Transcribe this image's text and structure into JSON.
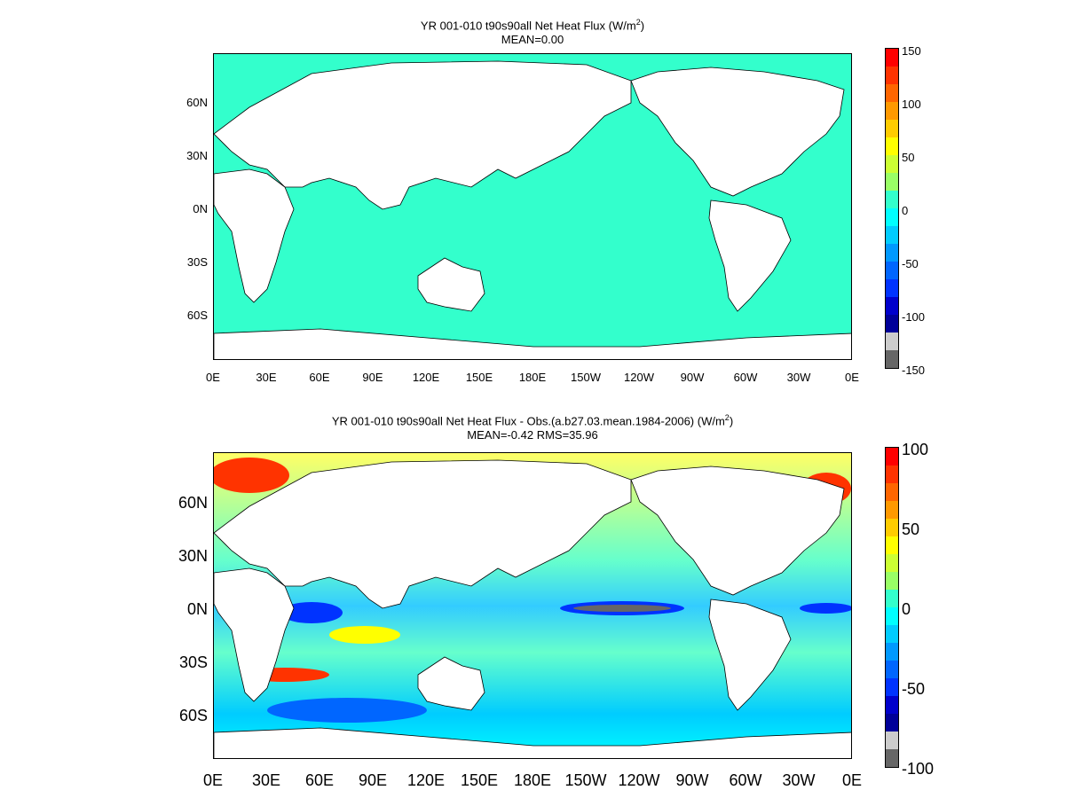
{
  "panels": [
    {
      "title_main": "YR 001-010 t90s90all  Net Heat Flux (W/m",
      "title_unit_exp": "2",
      "title_close": ")",
      "subtitle": "MEAN=0.00",
      "colorbar_labels": [
        "150",
        "100",
        "50",
        "0",
        "-50",
        "-100",
        "-150"
      ],
      "field_color": "#33ffcc"
    },
    {
      "title_main": "YR 001-010 t90s90all  Net Heat Flux - Obs.(a.b27.03.mean.1984-2006) (W/m",
      "title_unit_exp": "2",
      "title_close": ")",
      "subtitle": "MEAN=-0.42 RMS=35.96",
      "colorbar_labels": [
        "100",
        "50",
        "0",
        "-50",
        "-100"
      ]
    }
  ],
  "lat_labels": [
    "60N",
    "30N",
    "0N",
    "30S",
    "60S"
  ],
  "lon_labels": [
    "0E",
    "30E",
    "60E",
    "90E",
    "120E",
    "150E",
    "180E",
    "150W",
    "120W",
    "90W",
    "60W",
    "30W",
    "0E"
  ],
  "colorbar_colors": [
    "#ff0000",
    "#ff3300",
    "#ff6600",
    "#ff9900",
    "#ffcc00",
    "#ffff00",
    "#ccff33",
    "#99ff66",
    "#33ffcc",
    "#00ffff",
    "#00ccff",
    "#0099ff",
    "#0066ff",
    "#0033ff",
    "#0000cc",
    "#000099",
    "#cccccc",
    "#666666"
  ]
}
